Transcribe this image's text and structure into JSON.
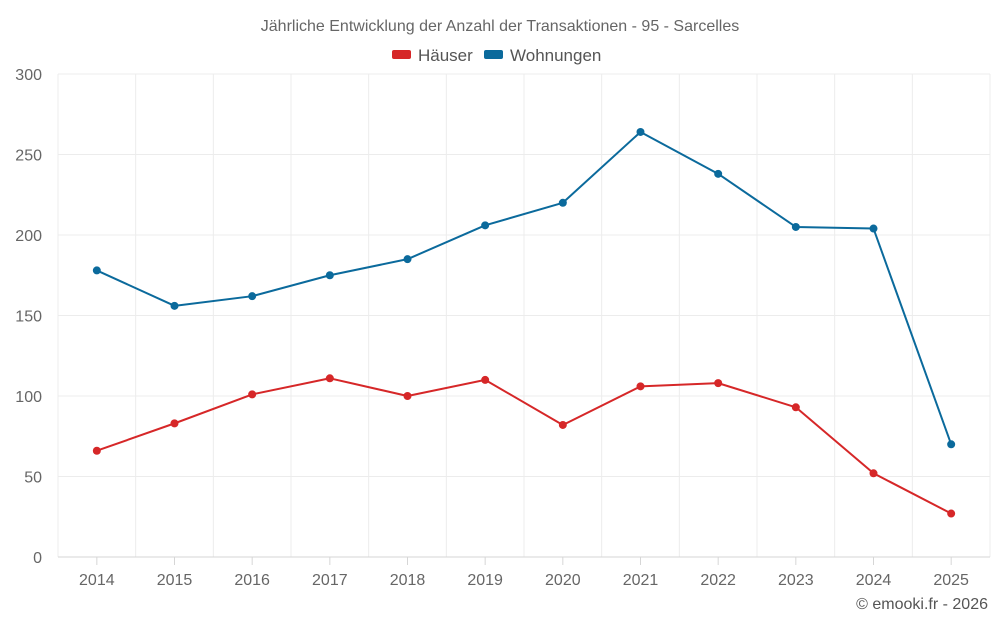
{
  "chart_data": {
    "type": "line",
    "title": "Jährliche Entwicklung der Anzahl der Transaktionen - 95 - Sarcelles",
    "categories": [
      "2014",
      "2015",
      "2016",
      "2017",
      "2018",
      "2019",
      "2020",
      "2021",
      "2022",
      "2023",
      "2024",
      "2025"
    ],
    "series": [
      {
        "name": "Häuser",
        "color": "#d62728",
        "values": [
          66,
          83,
          101,
          111,
          100,
          110,
          82,
          106,
          108,
          93,
          52,
          27
        ]
      },
      {
        "name": "Wohnungen",
        "color": "#0b6a9c",
        "values": [
          178,
          156,
          162,
          175,
          185,
          206,
          220,
          264,
          238,
          205,
          204,
          70
        ]
      }
    ],
    "xlabel": "",
    "ylabel": "",
    "ylim": [
      0,
      300
    ],
    "yticks": [
      0,
      50,
      100,
      150,
      200,
      250,
      300
    ],
    "grid": true,
    "legend_position": "top-center"
  },
  "credit": "© emooki.fr - 2026"
}
